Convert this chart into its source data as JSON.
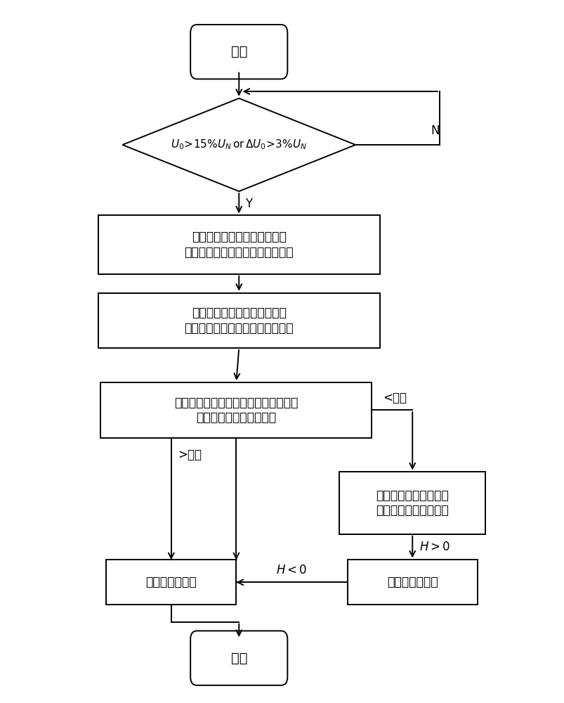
{
  "bg_color": "#ffffff",
  "line_color": "#000000",
  "text_color": "#000000",
  "figsize": [
    8.04,
    10.0
  ],
  "dpi": 100,
  "start_label": "开始",
  "end_label": "结束",
  "diamond_label_line1": "$\\it{U}$$_0$$>$15%$\\it{U}$$_N$or$\\Delta$$\\it{U}$$_0$$>$3%$\\it{U}$$_N$",
  "box1_line1": "估算过渡电阻确定调控范围，",
  "box1_line2": "注入电流信号逐次调控中性点电压",
  "box2_line1": "测量比较各馈线零序电流幅值",
  "box2_line2": "变化量，变化量最大即为故障馈线",
  "box3_line1": "提取各检测区段零序电流差值的幅值，",
  "box3_line2": "累计幅值与设定阈值比较",
  "box4_line1": "各检测区段零序电流差",
  "box4_line2": "值的幅值特征变化趋势",
  "box5_label": "判定为故障区段",
  "box6_label": "判定为健全区段",
  "label_N": "N",
  "label_Y": "Y",
  "label_threshold_less": "<阈值",
  "label_threshold_greater": ">阈值",
  "label_H_less": "$\\it{H}$$<$0",
  "label_H_greater": "$\\it{H}$$>$0"
}
